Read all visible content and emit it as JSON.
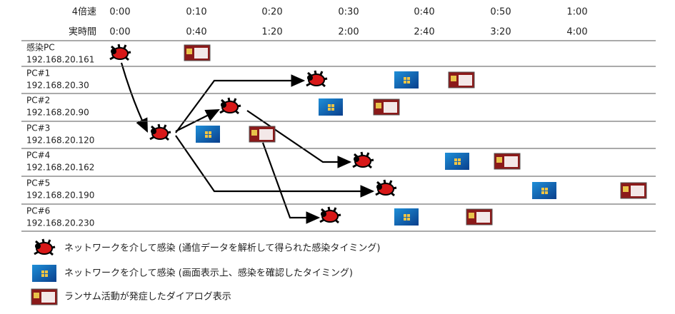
{
  "header": {
    "rows": [
      {
        "label": "4倍速",
        "times": [
          "0:00",
          "0:10",
          "0:20",
          "0:30",
          "0:40",
          "0:50",
          "1:00"
        ]
      },
      {
        "label": "実時間",
        "times": [
          "0:00",
          "0:40",
          "1:20",
          "2:00",
          "2:40",
          "3:20",
          "4:00"
        ]
      }
    ]
  },
  "hosts": [
    {
      "name": "感染PC",
      "ip": "192.168.20.161"
    },
    {
      "name": "PC#1",
      "ip": "192.168.20.30"
    },
    {
      "name": "PC#2",
      "ip": "192.168.20.90"
    },
    {
      "name": "PC#3",
      "ip": "192.168.20.120"
    },
    {
      "name": "PC#4",
      "ip": "192.168.20.162"
    },
    {
      "name": "PC#5",
      "ip": "192.168.20.190"
    },
    {
      "name": "PC#6",
      "ip": "192.168.20.230"
    }
  ],
  "legend": [
    "ネットワークを介して感染 (通信データを解析して得られた感染タイミング)",
    "ネットワークを介して感染 (画面表示上、感染を確認したタイミング)",
    "ランサム活動が発症したダイアログ表示"
  ]
}
